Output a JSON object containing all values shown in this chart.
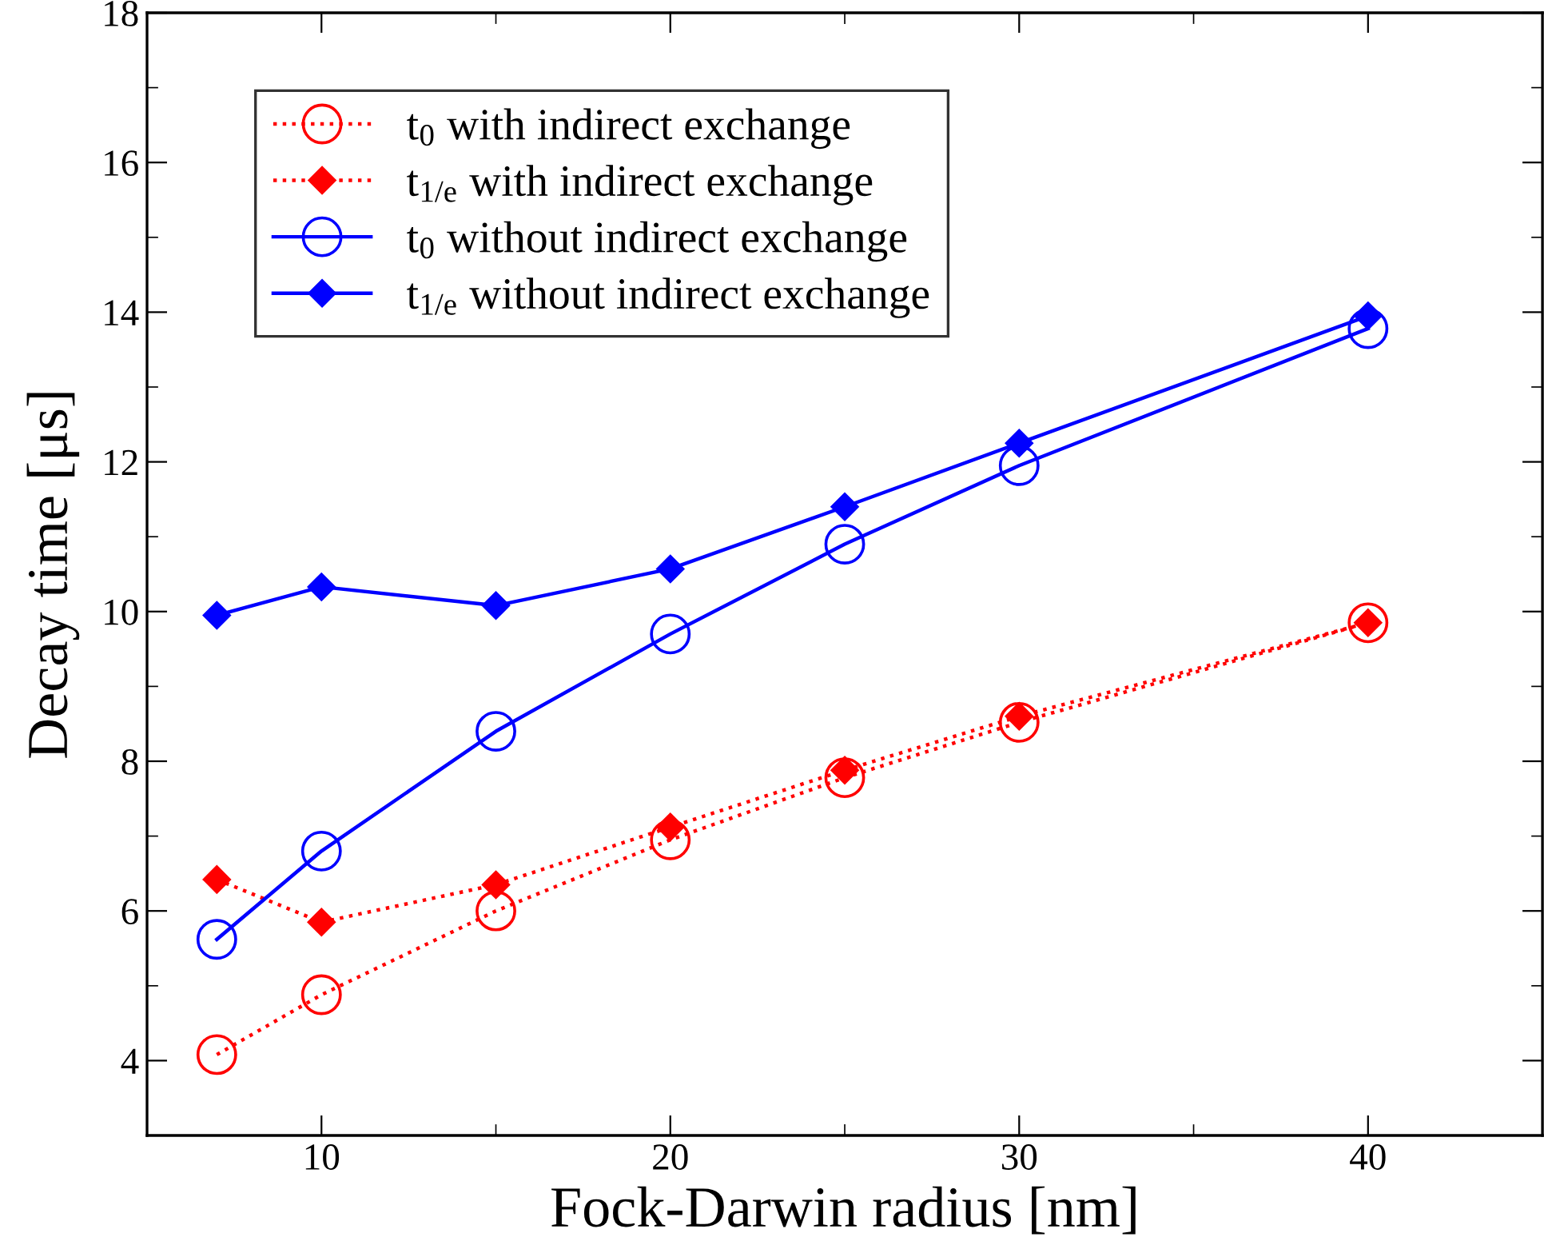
{
  "chart_data": {
    "type": "line",
    "xlabel": "Fock-Darwin radius [nm]",
    "ylabel": "Decay time [μs]",
    "x": [
      7,
      10,
      15,
      20,
      25,
      30,
      40
    ],
    "xlim": [
      5,
      45
    ],
    "xticks": [
      10,
      20,
      30,
      40
    ],
    "ylim": [
      3,
      18
    ],
    "yticks": [
      4,
      6,
      8,
      10,
      12,
      14,
      16,
      18
    ],
    "grid": false,
    "legend": "top left",
    "series": [
      {
        "name": "t$_{0}$ with indirect exchange",
        "color": "#ff0000",
        "marker": "circle",
        "line_style": "dotted",
        "values": [
          4.08,
          4.88,
          6.0,
          6.95,
          7.78,
          8.52,
          9.85
        ]
      },
      {
        "name": "t$_{1/e}$ with indirect exchange",
        "color": "#ff0000",
        "marker": "diamond",
        "line_style": "dotted",
        "values": [
          6.42,
          5.85,
          6.35,
          7.12,
          7.88,
          8.6,
          9.85
        ]
      },
      {
        "name": "t$_{0}$ without indirect exchange",
        "color": "#0000ff",
        "marker": "circle",
        "line_style": "solid",
        "values": [
          5.62,
          6.8,
          8.4,
          9.7,
          10.9,
          11.95,
          13.78
        ]
      },
      {
        "name": "t$_{1/e}$ without indirect exchange",
        "color": "#0000ff",
        "marker": "diamond",
        "line_style": "solid",
        "values": [
          9.95,
          10.33,
          10.08,
          10.57,
          11.4,
          12.25,
          13.95
        ]
      }
    ]
  }
}
